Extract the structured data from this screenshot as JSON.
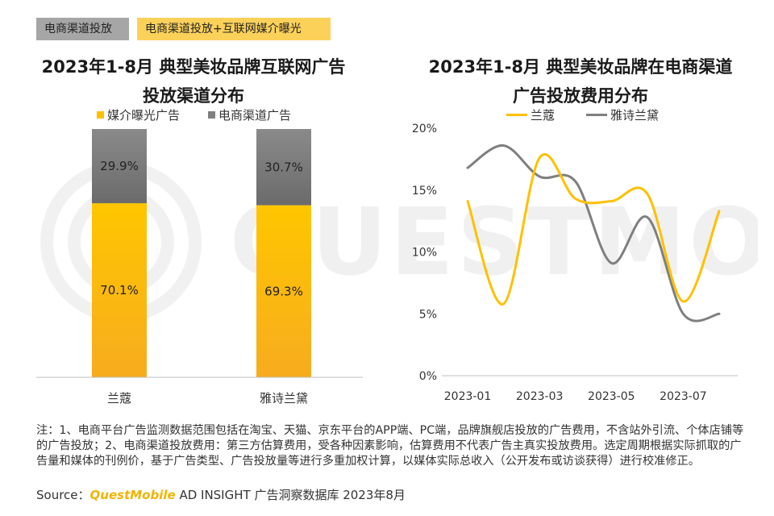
{
  "tags": [
    "电商渠道投放",
    "电商渠道投放+互联网媒介曝光"
  ],
  "colors": {
    "yellow": "#FFC000",
    "yellow_dark": "#F5A800",
    "gray": "#7F7F7F",
    "gray_dark": "#666666",
    "tag_gray": "#A6A6A6",
    "tag_yellow": "#FCD15A",
    "brand": "#F0B400"
  },
  "chart_data": [
    {
      "type": "bar",
      "stacked": true,
      "title_line1": "2023年1-8月 典型美妆品牌互联网广告",
      "title_line2": "投放渠道分布",
      "categories": [
        "兰蔻",
        "雅诗兰黛"
      ],
      "series": [
        {
          "name": "媒介曝光广告",
          "values": [
            70.1,
            69.3
          ],
          "labels": [
            "70.1%",
            "69.3%"
          ]
        },
        {
          "name": "电商渠道广告",
          "values": [
            29.9,
            30.7
          ],
          "labels": [
            "29.9%",
            "30.7%"
          ]
        }
      ],
      "ylim": [
        0,
        100
      ],
      "legend": "top"
    },
    {
      "type": "line",
      "title_line1": "2023年1-8月 典型美妆品牌在电商渠道",
      "title_line2": "广告投放费用分布",
      "x": [
        "2023-01",
        "2023-02",
        "2023-03",
        "2023-04",
        "2023-05",
        "2023-06",
        "2023-07",
        "2023-08"
      ],
      "x_tick_labels": [
        "2023-01",
        "2023-03",
        "2023-05",
        "2023-07"
      ],
      "y_tick_labels": [
        "0%",
        "5%",
        "10%",
        "15%",
        "20%"
      ],
      "ylim": [
        0,
        20
      ],
      "series": [
        {
          "name": "兰蔻",
          "values": [
            14.1,
            5.8,
            17.6,
            14.3,
            14.1,
            14.7,
            6.0,
            13.3
          ]
        },
        {
          "name": "雅诗兰黛",
          "values": [
            16.8,
            18.6,
            16.1,
            15.7,
            9.1,
            12.8,
            5.0,
            5.0
          ]
        }
      ],
      "legend": "top"
    }
  ],
  "note": "注：1、电商平台广告监测数据范围包括在淘宝、天猫、京东平台的APP端、PC端，品牌旗舰店投放的广告费用，不含站外引流、个体店铺等的广告投放；2、电商渠道投放费用：第三方估算费用，受各种因素影响，估算费用不代表广告主真实投放费用。选定周期根据实际抓取的广告量和媒体的刊例价，基于广告类型、广告投放量等进行多重加权计算，以媒体实际总收入（公开发布或访谈获得）进行校准修正。",
  "source": {
    "prefix": "Source：",
    "brand": "QuestMobile",
    "rest": " AD INSIGHT 广告洞察数据库 2023年8月"
  },
  "watermark_text": "QUESTMOBILE"
}
